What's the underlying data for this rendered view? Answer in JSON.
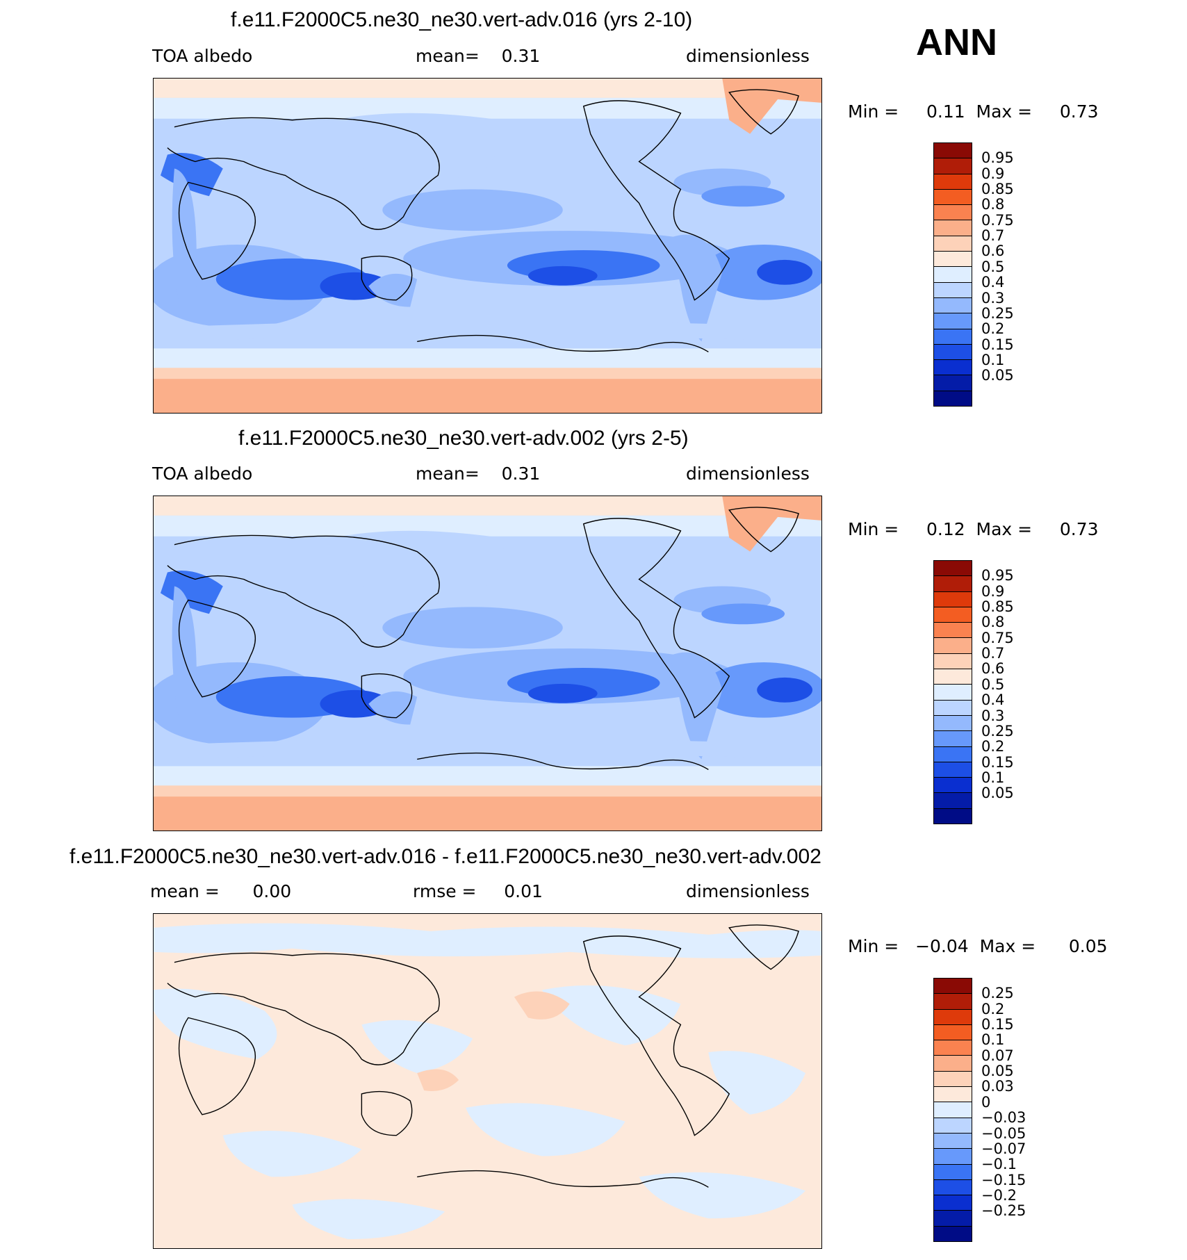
{
  "season": "ANN",
  "panels": [
    {
      "title": "f.e11.F2000C5.ne30_ne30.vert-adv.016 (yrs 2-10)",
      "left_label": "TOA albedo",
      "center_label": "mean=    0.31",
      "right_label": "dimensionless",
      "minmax": "Min =     0.11  Max =     0.73",
      "colorbar_labels": [
        "0.95",
        "0.9",
        "0.85",
        "0.8",
        "0.75",
        "0.7",
        "0.6",
        "0.5",
        "0.4",
        "0.3",
        "0.25",
        "0.2",
        "0.15",
        "0.1",
        "0.05"
      ],
      "colorbar_colors": [
        "#8a0a05",
        "#b01d08",
        "#de3a0b",
        "#f35d22",
        "#fa8250",
        "#fbaf8a",
        "#fdd2b9",
        "#fde9db",
        "#dfeeff",
        "#bcd5ff",
        "#94b9fd",
        "#6799fb",
        "#3a74f4",
        "#1d4fe6",
        "#0a2fd0",
        "#041ca8",
        "#000c86"
      ]
    },
    {
      "title": "f.e11.F2000C5.ne30_ne30.vert-adv.002 (yrs 2-5)",
      "left_label": "TOA albedo",
      "center_label": "mean=    0.31",
      "right_label": "dimensionless",
      "minmax": "Min =     0.12  Max =     0.73",
      "colorbar_labels": [
        "0.95",
        "0.9",
        "0.85",
        "0.8",
        "0.75",
        "0.7",
        "0.6",
        "0.5",
        "0.4",
        "0.3",
        "0.25",
        "0.2",
        "0.15",
        "0.1",
        "0.05"
      ],
      "colorbar_colors": [
        "#8a0a05",
        "#b01d08",
        "#de3a0b",
        "#f35d22",
        "#fa8250",
        "#fbaf8a",
        "#fdd2b9",
        "#fde9db",
        "#dfeeff",
        "#bcd5ff",
        "#94b9fd",
        "#6799fb",
        "#3a74f4",
        "#1d4fe6",
        "#0a2fd0",
        "#041ca8",
        "#000c86"
      ]
    },
    {
      "title": "f.e11.F2000C5.ne30_ne30.vert-adv.016 - f.e11.F2000C5.ne30_ne30.vert-adv.002",
      "left_label": "mean =      0.00",
      "center_label": "rmse =     0.01",
      "right_label": "dimensionless",
      "minmax": "Min =   −0.04  Max =      0.05",
      "colorbar_labels": [
        "0.25",
        "0.2",
        "0.15",
        "0.1",
        "0.07",
        "0.05",
        "0.03",
        "0",
        "−0.03",
        "−0.05",
        "−0.07",
        "−0.1",
        "−0.15",
        "−0.2",
        "−0.25"
      ],
      "colorbar_colors": [
        "#8a0a05",
        "#b01d08",
        "#de3a0b",
        "#f35d22",
        "#fa8250",
        "#fbaf8a",
        "#fdd2b9",
        "#fde9db",
        "#dfeeff",
        "#bcd5ff",
        "#94b9fd",
        "#6799fb",
        "#3a74f4",
        "#1d4fe6",
        "#0a2fd0",
        "#041ca8",
        "#000c86"
      ]
    }
  ]
}
